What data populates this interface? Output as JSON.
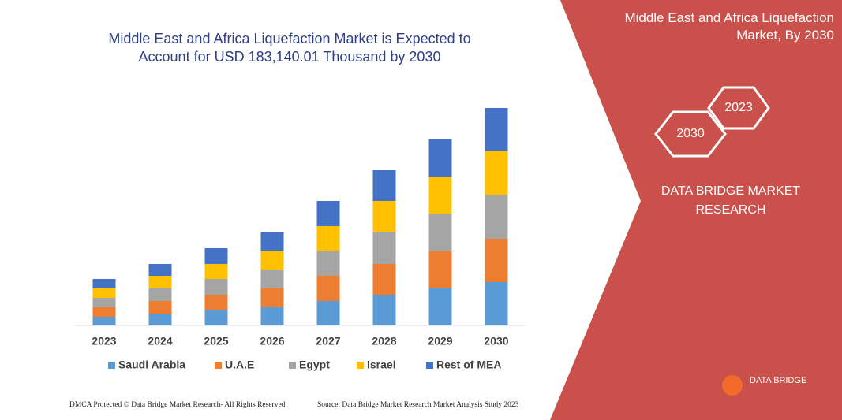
{
  "chart_data": {
    "type": "bar",
    "stacked": true,
    "title": "Middle East and Africa Liquefaction Market is Expected to Account for USD 183,140.01 Thousand by 2030",
    "categories": [
      "2023",
      "2024",
      "2025",
      "2026",
      "2027",
      "2028",
      "2029",
      "2030"
    ],
    "series": [
      {
        "name": "Saudi Arabia",
        "color": "#5b9bd5",
        "values": [
          11,
          15,
          19,
          23,
          31,
          39,
          47,
          55
        ]
      },
      {
        "name": "U.A.E",
        "color": "#ed7d31",
        "values": [
          12,
          16,
          20,
          24,
          32,
          39,
          47,
          55
        ]
      },
      {
        "name": "Egypt",
        "color": "#a5a5a5",
        "values": [
          12,
          16,
          20,
          23,
          31,
          40,
          48,
          56
        ]
      },
      {
        "name": "Israel",
        "color": "#ffc000",
        "values": [
          12,
          16,
          19,
          24,
          32,
          40,
          47,
          55
        ]
      },
      {
        "name": "Rest of MEA",
        "color": "#4472c4",
        "values": [
          12,
          15,
          20,
          24,
          32,
          39,
          48,
          55
        ]
      }
    ]
  },
  "side_panel": {
    "title": "Middle East and Africa Liquefaction Market, By 2030",
    "hexagons": [
      "2030",
      "2023"
    ],
    "brand": "DATA BRIDGE MARKET RESEARCH"
  },
  "logo": {
    "text": "DATA BRIDGE"
  },
  "footer": {
    "left": "DMCA Protected © Data Bridge Market Research- All Rights Reserved.",
    "right": "Source: Data Bridge Market Research Market Analysis Study 2023"
  }
}
